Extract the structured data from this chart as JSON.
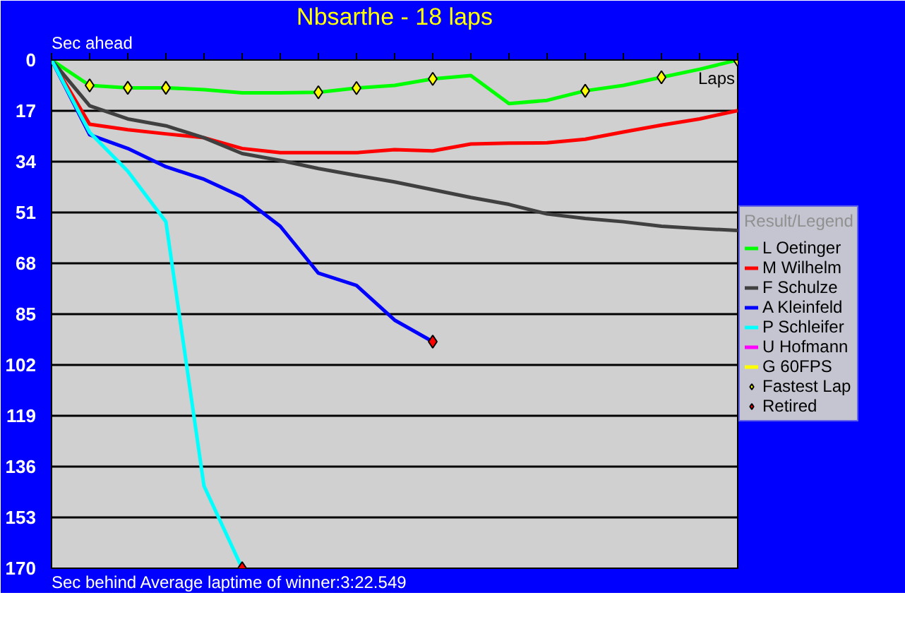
{
  "chart_data": {
    "type": "line",
    "title": "Nbsarthe - 18 laps",
    "xlabel": "Laps",
    "legend_title": "Result/Legend",
    "annotations": [
      "Sec ahead",
      "Sec behind",
      "Average laptime of winner:3:22.549"
    ],
    "categories": [
      null,
      null,
      null,
      null,
      null,
      null,
      null,
      null,
      null,
      null,
      null,
      null,
      null,
      null,
      null,
      null,
      null,
      null,
      null
    ],
    "ylim": [
      170,
      0
    ],
    "yticks": [
      0,
      17,
      34,
      51,
      68,
      85,
      102,
      119,
      136,
      153,
      170
    ],
    "grid": "y",
    "legend": "right",
    "tick_labels": "y",
    "line_style": "solid",
    "marker": "none",
    "series": [
      {
        "name": "L Oetinger",
        "color": "#00ff00",
        "values": [
          0,
          8.5,
          9.3,
          9.3,
          9.9,
          11,
          11,
          10.8,
          9.4,
          8.5,
          6.3,
          5.2,
          14.6,
          13.5,
          10.3,
          8.5,
          5.8,
          3.1,
          0
        ]
      },
      {
        "name": "M Wilhelm",
        "color": "#ff0000",
        "values": [
          0,
          21.5,
          23.3,
          24.7,
          26,
          29.6,
          31,
          31,
          31,
          30,
          30.4,
          28.1,
          27.8,
          27.7,
          26.5,
          24.1,
          21.8,
          19.7,
          16.9
        ]
      },
      {
        "name": "F Schulze",
        "color": "#404040",
        "values": [
          0,
          15.3,
          19.7,
          22,
          26,
          31.3,
          33.6,
          36.3,
          38.6,
          40.8,
          43.4,
          46,
          48.3,
          51.5,
          53,
          54.1,
          55.6,
          56.4,
          57
        ]
      },
      {
        "name": "A Kleinfeld",
        "color": "#0000ff",
        "values": [
          0,
          25,
          29.6,
          35.7,
          39.9,
          45.8,
          55.6,
          71.3,
          75.4,
          87,
          94.2,
          null,
          null,
          null,
          null,
          null,
          null,
          null,
          null
        ]
      },
      {
        "name": "P Schleifer",
        "color": "#00ffff",
        "values": [
          0,
          24.2,
          37.2,
          54.1,
          142.5,
          170,
          null,
          null,
          null,
          null,
          null,
          null,
          null,
          null,
          null,
          null,
          null,
          null,
          null
        ]
      },
      {
        "name": "U Hofmann",
        "color": "#ff00ff",
        "values": [
          null,
          null,
          null,
          null,
          null,
          null,
          null,
          null,
          null,
          null,
          null,
          null,
          null,
          null,
          null,
          null,
          null,
          null,
          null
        ]
      },
      {
        "name": "G 60FPS",
        "color": "#ffff00",
        "values": [
          null,
          null,
          null,
          null,
          null,
          null,
          null,
          null,
          null,
          null,
          null,
          null,
          null,
          null,
          null,
          null,
          null,
          null,
          null
        ]
      },
      {
        "name": "Fastest Lap",
        "type": "scatter",
        "marker": "diamond",
        "color": "#ffff00",
        "values": [
          null,
          8.5,
          9.3,
          9.3,
          null,
          null,
          null,
          10.8,
          9.4,
          null,
          6.3,
          null,
          null,
          null,
          10.3,
          null,
          5.8,
          null,
          0
        ]
      },
      {
        "name": "Retired",
        "type": "scatter",
        "marker": "diamond",
        "color": "#ff0000",
        "values": [
          null,
          null,
          null,
          null,
          null,
          170,
          null,
          null,
          null,
          null,
          94.2,
          null,
          null,
          null,
          null,
          null,
          null,
          null,
          null
        ]
      }
    ]
  }
}
